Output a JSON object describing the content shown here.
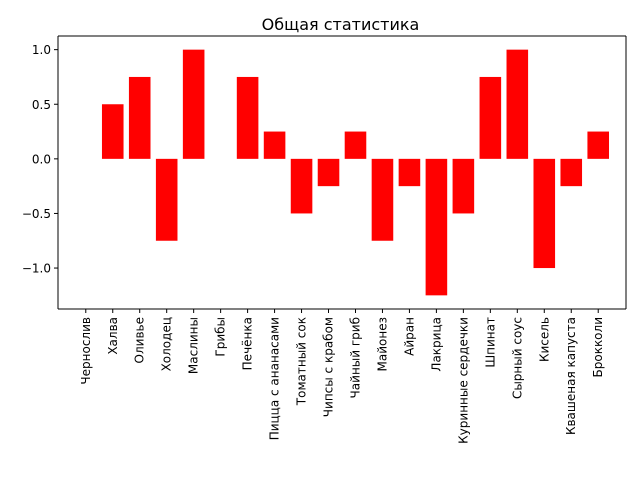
{
  "chart_data": {
    "type": "bar",
    "title": "Общая статистика",
    "xlabel": "",
    "ylabel": "",
    "categories": [
      "Чернослив",
      "Халва",
      "Оливье",
      "Холодец",
      "Маслины",
      "Грибы",
      "Печёнка",
      "Пицца с ананасами",
      "Томатный сок",
      "Чипсы с крабом",
      "Чайный гриб",
      "Майонез",
      "Айран",
      "Лакрица",
      "Куринные сердечки",
      "Шпинат",
      "Сырный соус",
      "Кисель",
      "Квашеная капуста",
      "Брокколи"
    ],
    "values": [
      0,
      0.5,
      0.75,
      -0.75,
      1.0,
      0,
      0.75,
      0.25,
      -0.5,
      -0.25,
      0.25,
      -0.75,
      -0.25,
      -1.25,
      -0.5,
      0.75,
      1.0,
      -1.0,
      -0.25,
      0.25
    ],
    "ylim": [
      -1.375,
      1.125
    ],
    "yticks": [
      -1.0,
      -0.5,
      0.0,
      0.5,
      1.0
    ],
    "ytick_labels": [
      "−1.0",
      "−0.5",
      "0.0",
      "0.5",
      "1.0"
    ],
    "bar_color": "#ff0000",
    "grid": false,
    "legend": "none"
  }
}
